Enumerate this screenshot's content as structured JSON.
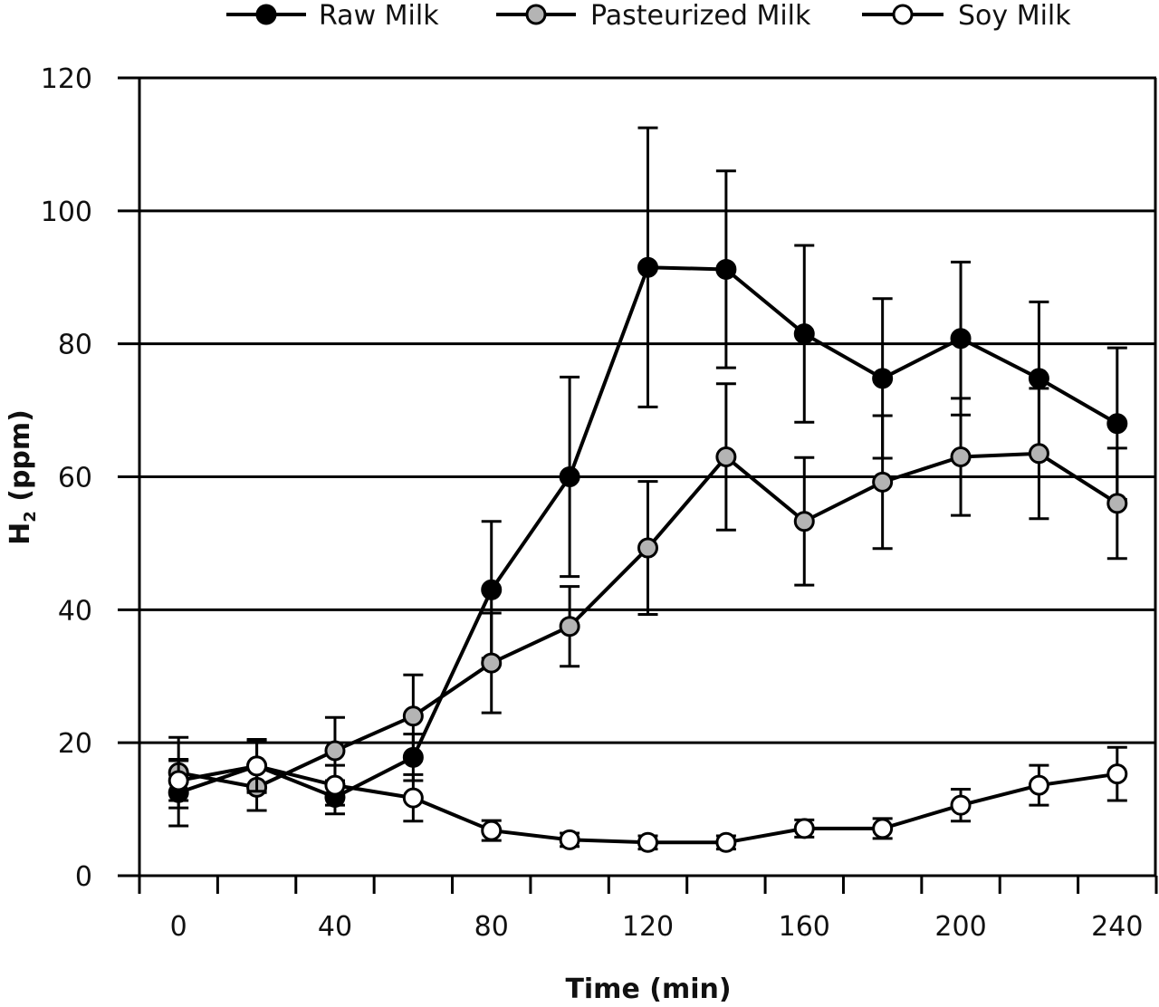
{
  "chart_data": {
    "type": "line",
    "xlabel": "Time (min)",
    "ylabel_main": "H",
    "ylabel_sub": "2",
    "ylabel_unit": "(ppm)",
    "ylim": [
      0,
      120
    ],
    "yticks": [
      0,
      20,
      40,
      60,
      80,
      100,
      120
    ],
    "xlim": [
      -10,
      250
    ],
    "xticks": [
      0,
      40,
      80,
      120,
      160,
      200,
      240
    ],
    "x_minor_ticks": [
      -10,
      10,
      30,
      50,
      70,
      90,
      110,
      130,
      150,
      170,
      190,
      210,
      230,
      250
    ],
    "grid": "horizontal",
    "legend_position": "top",
    "x": [
      0,
      20,
      40,
      60,
      80,
      100,
      120,
      140,
      160,
      180,
      200,
      220,
      240
    ],
    "series": [
      {
        "name": "Raw Milk",
        "marker": "filled-black",
        "fill": "#000000",
        "values": [
          12.5,
          16.5,
          11.8,
          17.8,
          43.0,
          60.0,
          91.5,
          91.2,
          81.5,
          74.8,
          80.8,
          74.8,
          68.0
        ],
        "errors": [
          5.0,
          4.0,
          2.5,
          3.5,
          10.3,
          15.0,
          21.0,
          14.8,
          13.3,
          12.0,
          11.5,
          11.5,
          11.4
        ]
      },
      {
        "name": "Pasteurized Milk",
        "marker": "filled-gray",
        "fill": "#b4b4b4",
        "values": [
          15.5,
          13.3,
          18.8,
          24.0,
          32.0,
          37.5,
          49.3,
          63.0,
          53.3,
          59.2,
          63.0,
          63.5,
          56.0
        ],
        "errors": [
          5.3,
          3.5,
          5.0,
          6.2,
          7.5,
          6.0,
          10.0,
          11.0,
          9.6,
          10.0,
          8.8,
          9.8,
          8.3
        ]
      },
      {
        "name": "Soy Milk",
        "marker": "open-white",
        "fill": "#ffffff",
        "values": [
          14.3,
          16.5,
          13.6,
          11.7,
          6.8,
          5.4,
          5.0,
          5.0,
          7.1,
          7.1,
          10.6,
          13.6,
          15.3
        ],
        "errors": [
          3.0,
          3.8,
          3.0,
          3.5,
          1.5,
          1.0,
          1.0,
          1.0,
          1.3,
          1.5,
          2.4,
          3.0,
          4.0
        ]
      }
    ]
  }
}
